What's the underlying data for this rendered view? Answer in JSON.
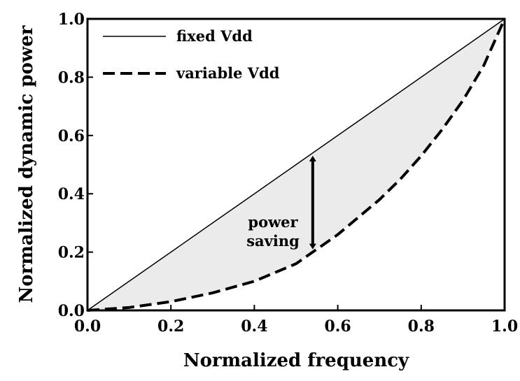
{
  "chart_data": {
    "type": "line",
    "title": "",
    "xlabel": "Normalized frequency",
    "ylabel": "Normalized dynamic power",
    "xlim": [
      0,
      1
    ],
    "ylim": [
      0,
      1
    ],
    "x_ticks": [
      "0.0",
      "0.2",
      "0.4",
      "0.6",
      "0.8",
      "1.0"
    ],
    "y_ticks": [
      "0.0",
      "0.2",
      "0.4",
      "0.6",
      "0.8",
      "1.0"
    ],
    "grid": false,
    "legend_position": "top-left",
    "fill_between_series": true,
    "fill_color": "#ebebeb",
    "series": [
      {
        "name": "fixed Vdd",
        "style": "solid",
        "x": [
          0,
          0.1,
          0.2,
          0.3,
          0.4,
          0.5,
          0.6,
          0.7,
          0.8,
          0.9,
          1.0
        ],
        "y": [
          0,
          0.1,
          0.2,
          0.3,
          0.4,
          0.5,
          0.6,
          0.7,
          0.8,
          0.9,
          1.0
        ]
      },
      {
        "name": "variable Vdd",
        "style": "dashed",
        "x": [
          0,
          0.1,
          0.2,
          0.3,
          0.4,
          0.45,
          0.5,
          0.55,
          0.6,
          0.65,
          0.7,
          0.75,
          0.8,
          0.85,
          0.9,
          0.95,
          1.0
        ],
        "y": [
          0,
          0.01,
          0.03,
          0.06,
          0.1,
          0.13,
          0.16,
          0.21,
          0.26,
          0.32,
          0.38,
          0.45,
          0.53,
          0.62,
          0.72,
          0.84,
          1.0
        ]
      }
    ],
    "annotation": {
      "text_lines": [
        "power",
        "saving"
      ],
      "arrow_x": 0.54,
      "arrow_y_top": 0.54,
      "arrow_y_bottom": 0.2
    }
  }
}
